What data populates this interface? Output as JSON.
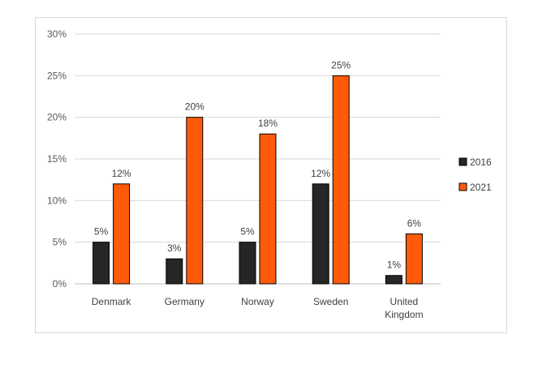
{
  "chart_data": {
    "type": "bar",
    "title": "",
    "xlabel": "",
    "ylabel": "",
    "categories": [
      "Denmark",
      "Germany",
      "Norway",
      "Sweden",
      "United Kingdom"
    ],
    "category_lines": [
      [
        "Denmark"
      ],
      [
        "Germany"
      ],
      [
        "Norway"
      ],
      [
        "Sweden"
      ],
      [
        "United",
        "Kingdom"
      ]
    ],
    "series": [
      {
        "name": "2016",
        "color": "#262626",
        "values": [
          5,
          3,
          5,
          12,
          1
        ],
        "labels": [
          "5%",
          "3%",
          "5%",
          "12%",
          "1%"
        ]
      },
      {
        "name": "2021",
        "color": "#ff5a0a",
        "values": [
          12,
          20,
          18,
          25,
          6
        ],
        "labels": [
          "12%",
          "20%",
          "18%",
          "25%",
          "6%"
        ]
      }
    ],
    "ylim": [
      0,
      30
    ],
    "yticks": [
      0,
      5,
      10,
      15,
      20,
      25,
      30
    ],
    "ytick_labels": [
      "0%",
      "5%",
      "10%",
      "15%",
      "20%",
      "25%",
      "30%"
    ],
    "grid": true,
    "legend_position": "right"
  }
}
